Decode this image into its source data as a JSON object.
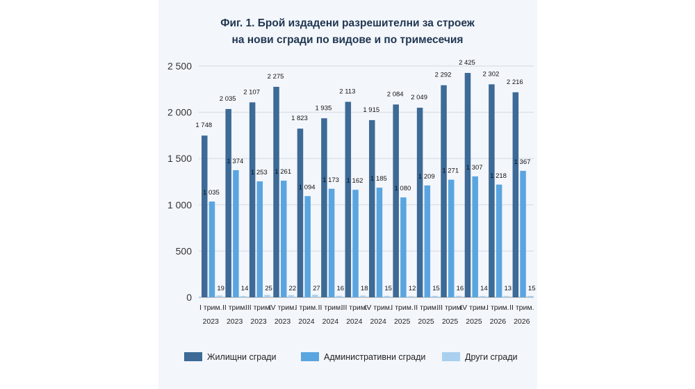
{
  "chart_data": {
    "type": "bar",
    "title_lines": [
      "Фиг. 1. Брой издадени разрешителни за строеж",
      "на нови сгради по видове и по тримесечия"
    ],
    "categories": [
      [
        "I трим.",
        "2023"
      ],
      [
        "II трим.",
        "2023"
      ],
      [
        "III трим.",
        "2023"
      ],
      [
        "IV трим.",
        "2023"
      ],
      [
        "I трим.",
        "2024"
      ],
      [
        "II трим.",
        "2024"
      ],
      [
        "III трим.",
        "2024"
      ],
      [
        "IV трим.",
        "2024"
      ],
      [
        "I трим.",
        "2025"
      ],
      [
        "II трим.",
        "2025"
      ],
      [
        "III трим.",
        "2025"
      ],
      [
        "IV трим.",
        "2025"
      ],
      [
        "I трим.",
        "2026"
      ],
      [
        "II трим.",
        "2026"
      ]
    ],
    "series": [
      {
        "name": "Жилищни сгради",
        "color": "#3d6a96",
        "values": [
          1748,
          2035,
          2107,
          2275,
          1823,
          1935,
          2113,
          1915,
          2084,
          2049,
          2292,
          2425,
          2302,
          2216
        ],
        "labels": [
          "1 748",
          "2 035",
          "2 107",
          "2 275",
          "1 823",
          "1 935",
          "2 113",
          "1 915",
          "2 084",
          "2 049",
          "2 292",
          "2 425",
          "2 302",
          "2 216"
        ]
      },
      {
        "name": "Административни сгради",
        "color": "#5aa5e0",
        "values": [
          1035,
          1374,
          1253,
          1261,
          1094,
          1173,
          1162,
          1185,
          1080,
          1209,
          1271,
          1307,
          1218,
          1367
        ],
        "labels": [
          "1 035",
          "1 374",
          "1 253",
          "1 261",
          "1 094",
          "1 173",
          "1 162",
          "1 185",
          "1 080",
          "1 209",
          "1 271",
          "1 307",
          "1 218",
          "1 367"
        ]
      },
      {
        "name": "Други сгради",
        "color": "#a9d0ef",
        "values": [
          19,
          14,
          25,
          22,
          27,
          16,
          18,
          15,
          12,
          15,
          16,
          14,
          13,
          15
        ],
        "labels": [
          "19",
          "14",
          "25",
          "22",
          "27",
          "16",
          "18",
          "15",
          "12",
          "15",
          "16",
          "14",
          "13",
          "15"
        ]
      }
    ],
    "ylim": [
      0,
      2500
    ],
    "yticks": [
      0,
      500,
      1000,
      1500,
      2000,
      2500
    ],
    "ytick_labels": [
      "0",
      "500",
      "1 000",
      "1 500",
      "2 000",
      "2 500"
    ],
    "grid": true,
    "legend_position": "bottom"
  }
}
